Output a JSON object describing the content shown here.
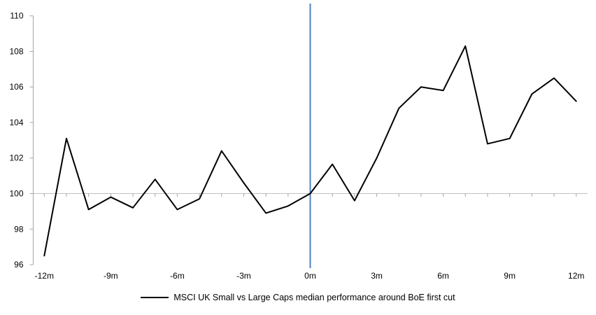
{
  "chart_data": {
    "type": "line",
    "title": "",
    "x": [
      -12,
      -11,
      -10,
      -9,
      -8,
      -7,
      -6,
      -5,
      -4,
      -3,
      -2,
      -1,
      0,
      1,
      2,
      3,
      4,
      5,
      6,
      7,
      8,
      9,
      10,
      11,
      12
    ],
    "series": [
      {
        "name": "MSCI UK Small vs Large Caps median performance around BoE first cut",
        "color": "#000000",
        "values": [
          96.5,
          103.1,
          99.1,
          99.8,
          99.2,
          100.8,
          99.1,
          99.7,
          102.4,
          100.6,
          98.9,
          99.3,
          100.0,
          101.65,
          99.6,
          102.0,
          104.8,
          106.0,
          105.8,
          108.3,
          102.8,
          103.1,
          105.6,
          106.5,
          105.2
        ]
      }
    ],
    "x_ticks": [
      {
        "m": -12,
        "label": "-12m"
      },
      {
        "m": -9,
        "label": "-9m"
      },
      {
        "m": -6,
        "label": "-6m"
      },
      {
        "m": -3,
        "label": "-3m"
      },
      {
        "m": 0,
        "label": "0m"
      },
      {
        "m": 3,
        "label": "3m"
      },
      {
        "m": 6,
        "label": "6m"
      },
      {
        "m": 9,
        "label": "9m"
      },
      {
        "m": 12,
        "label": "12m"
      }
    ],
    "y_ticks": [
      {
        "v": 96,
        "label": "96"
      },
      {
        "v": 98,
        "label": "98"
      },
      {
        "v": 100,
        "label": "100"
      },
      {
        "v": 102,
        "label": "102"
      },
      {
        "v": 104,
        "label": "104"
      },
      {
        "v": 106,
        "label": "106"
      },
      {
        "v": 108,
        "label": "108"
      },
      {
        "v": 110,
        "label": "110"
      }
    ],
    "ylim": [
      96,
      110
    ],
    "xlim": [
      -12,
      12
    ],
    "baseline": 100,
    "event_line_x": 0,
    "grid": "baseline-only",
    "legend_position": "bottom",
    "colors": {
      "series": "#000000",
      "event_line": "#4F81BD",
      "axis": "#A6A6A6",
      "gridline": "#C0C0C0",
      "text": "#000000"
    },
    "legend": {
      "label": "MSCI UK Small vs Large Caps median performance around BoE first cut"
    }
  }
}
